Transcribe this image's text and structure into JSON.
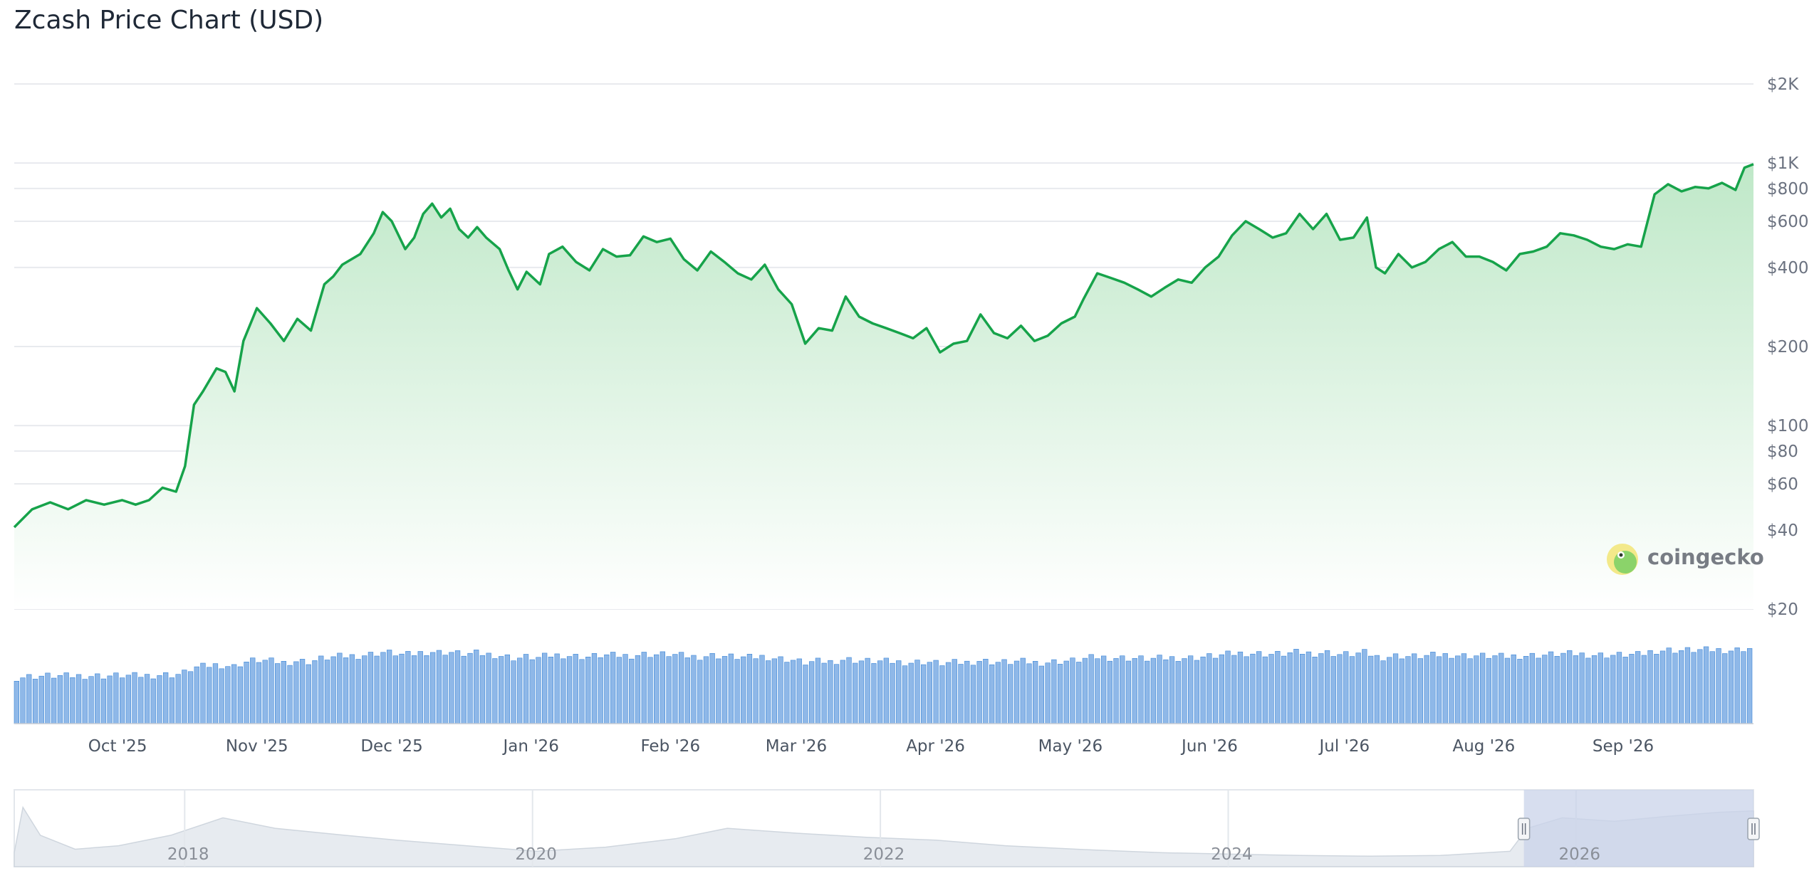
{
  "title": "Zcash Price Chart (USD)",
  "watermark": "coingecko",
  "colors": {
    "line": "#16a34a",
    "area_top": "#bfe8c8",
    "area_bottom": "#ffffff",
    "volume": "#8fb8e8",
    "volume_stroke": "#3a86d8",
    "grid": "#e8eaee",
    "navigator_fill": "#e7ebf0",
    "navigator_line": "#cfd6de",
    "navigator_selection": "#c9d3ea"
  },
  "chart_data": {
    "type": "line",
    "title": "Zcash Price Chart (USD)",
    "y_scale": "log",
    "ylim": [
      20,
      2000
    ],
    "y_ticks": [
      {
        "value": 20,
        "label": "$20"
      },
      {
        "value": 40,
        "label": "$40"
      },
      {
        "value": 60,
        "label": "$60"
      },
      {
        "value": 80,
        "label": "$80"
      },
      {
        "value": 100,
        "label": "$100"
      },
      {
        "value": 200,
        "label": "$200"
      },
      {
        "value": 400,
        "label": "$400"
      },
      {
        "value": 600,
        "label": "$600"
      },
      {
        "value": 800,
        "label": "$800"
      },
      {
        "value": 1000,
        "label": "$1K"
      },
      {
        "value": 2000,
        "label": "$2K"
      }
    ],
    "x_ticks": [
      "Oct '25",
      "Nov '25",
      "Dec '25",
      "Jan '26",
      "Feb '26",
      "Mar '26",
      "Apr '26",
      "May '26",
      "Jun '26",
      "Jul '26",
      "Aug '26",
      "Sep '26"
    ],
    "series": [
      {
        "type": "price",
        "points": [
          [
            "2025-09-08",
            41
          ],
          [
            "2025-09-12",
            48
          ],
          [
            "2025-09-16",
            51
          ],
          [
            "2025-09-20",
            48
          ],
          [
            "2025-09-24",
            52
          ],
          [
            "2025-09-28",
            50
          ],
          [
            "2025-10-02",
            52
          ],
          [
            "2025-10-05",
            50
          ],
          [
            "2025-10-08",
            52
          ],
          [
            "2025-10-11",
            58
          ],
          [
            "2025-10-14",
            56
          ],
          [
            "2025-10-16",
            70
          ],
          [
            "2025-10-18",
            120
          ],
          [
            "2025-10-20",
            135
          ],
          [
            "2025-10-23",
            165
          ],
          [
            "2025-10-25",
            160
          ],
          [
            "2025-10-27",
            135
          ],
          [
            "2025-10-29",
            210
          ],
          [
            "2025-11-01",
            280
          ],
          [
            "2025-11-04",
            245
          ],
          [
            "2025-11-07",
            210
          ],
          [
            "2025-11-10",
            255
          ],
          [
            "2025-11-13",
            230
          ],
          [
            "2025-11-16",
            345
          ],
          [
            "2025-11-18",
            370
          ],
          [
            "2025-11-20",
            410
          ],
          [
            "2025-11-24",
            450
          ],
          [
            "2025-11-27",
            540
          ],
          [
            "2025-11-29",
            650
          ],
          [
            "2025-12-01",
            600
          ],
          [
            "2025-12-04",
            470
          ],
          [
            "2025-12-06",
            520
          ],
          [
            "2025-12-08",
            640
          ],
          [
            "2025-12-10",
            700
          ],
          [
            "2025-12-12",
            620
          ],
          [
            "2025-12-14",
            670
          ],
          [
            "2025-12-16",
            560
          ],
          [
            "2025-12-18",
            520
          ],
          [
            "2025-12-20",
            570
          ],
          [
            "2025-12-22",
            520
          ],
          [
            "2025-12-25",
            470
          ],
          [
            "2025-12-27",
            390
          ],
          [
            "2025-12-29",
            330
          ],
          [
            "2025-12-31",
            385
          ],
          [
            "2026-01-03",
            345
          ],
          [
            "2026-01-05",
            450
          ],
          [
            "2026-01-08",
            480
          ],
          [
            "2026-01-11",
            420
          ],
          [
            "2026-01-14",
            390
          ],
          [
            "2026-01-17",
            470
          ],
          [
            "2026-01-20",
            440
          ],
          [
            "2026-01-23",
            445
          ],
          [
            "2026-01-26",
            525
          ],
          [
            "2026-01-29",
            500
          ],
          [
            "2026-02-01",
            515
          ],
          [
            "2026-02-04",
            430
          ],
          [
            "2026-02-07",
            390
          ],
          [
            "2026-02-10",
            460
          ],
          [
            "2026-02-13",
            420
          ],
          [
            "2026-02-16",
            380
          ],
          [
            "2026-02-19",
            360
          ],
          [
            "2026-02-22",
            410
          ],
          [
            "2026-02-25",
            330
          ],
          [
            "2026-02-28",
            290
          ],
          [
            "2026-03-03",
            205
          ],
          [
            "2026-03-06",
            235
          ],
          [
            "2026-03-09",
            230
          ],
          [
            "2026-03-12",
            310
          ],
          [
            "2026-03-15",
            260
          ],
          [
            "2026-03-18",
            245
          ],
          [
            "2026-03-21",
            235
          ],
          [
            "2026-03-24",
            225
          ],
          [
            "2026-03-27",
            215
          ],
          [
            "2026-03-30",
            235
          ],
          [
            "2026-04-02",
            190
          ],
          [
            "2026-04-05",
            205
          ],
          [
            "2026-04-08",
            210
          ],
          [
            "2026-04-11",
            265
          ],
          [
            "2026-04-14",
            225
          ],
          [
            "2026-04-17",
            215
          ],
          [
            "2026-04-20",
            240
          ],
          [
            "2026-04-23",
            210
          ],
          [
            "2026-04-26",
            220
          ],
          [
            "2026-04-29",
            245
          ],
          [
            "2026-05-02",
            260
          ],
          [
            "2026-05-04",
            305
          ],
          [
            "2026-05-07",
            380
          ],
          [
            "2026-05-10",
            365
          ],
          [
            "2026-05-13",
            350
          ],
          [
            "2026-05-16",
            330
          ],
          [
            "2026-05-19",
            310
          ],
          [
            "2026-05-22",
            335
          ],
          [
            "2026-05-25",
            360
          ],
          [
            "2026-05-28",
            350
          ],
          [
            "2026-05-31",
            400
          ],
          [
            "2026-06-03",
            440
          ],
          [
            "2026-06-06",
            530
          ],
          [
            "2026-06-09",
            600
          ],
          [
            "2026-06-12",
            560
          ],
          [
            "2026-06-15",
            520
          ],
          [
            "2026-06-18",
            540
          ],
          [
            "2026-06-21",
            640
          ],
          [
            "2026-06-24",
            560
          ],
          [
            "2026-06-27",
            640
          ],
          [
            "2026-06-30",
            510
          ],
          [
            "2026-07-03",
            520
          ],
          [
            "2026-07-06",
            620
          ],
          [
            "2026-07-08",
            400
          ],
          [
            "2026-07-10",
            380
          ],
          [
            "2026-07-13",
            450
          ],
          [
            "2026-07-16",
            400
          ],
          [
            "2026-07-19",
            420
          ],
          [
            "2026-07-22",
            470
          ],
          [
            "2026-07-25",
            500
          ],
          [
            "2026-07-28",
            440
          ],
          [
            "2026-07-31",
            440
          ],
          [
            "2026-08-03",
            420
          ],
          [
            "2026-08-06",
            390
          ],
          [
            "2026-08-09",
            450
          ],
          [
            "2026-08-12",
            460
          ],
          [
            "2026-08-15",
            480
          ],
          [
            "2026-08-18",
            540
          ],
          [
            "2026-08-21",
            530
          ],
          [
            "2026-08-24",
            510
          ],
          [
            "2026-08-27",
            480
          ],
          [
            "2026-08-30",
            470
          ],
          [
            "2026-09-02",
            490
          ],
          [
            "2026-09-05",
            480
          ],
          [
            "2026-09-08",
            760
          ],
          [
            "2026-09-11",
            830
          ],
          [
            "2026-09-14",
            780
          ],
          [
            "2026-09-17",
            810
          ],
          [
            "2026-09-20",
            800
          ],
          [
            "2026-09-23",
            840
          ],
          [
            "2026-09-26",
            790
          ],
          [
            "2026-09-28",
            960
          ],
          [
            "2026-09-30",
            990
          ]
        ]
      }
    ],
    "volume_panel": true,
    "navigator": {
      "ticks": [
        "2018",
        "2020",
        "2022",
        "2024",
        "2026"
      ],
      "selected_range": [
        "2025-09-08",
        "2026-09-30"
      ]
    },
    "grid": true,
    "legend": "none"
  }
}
